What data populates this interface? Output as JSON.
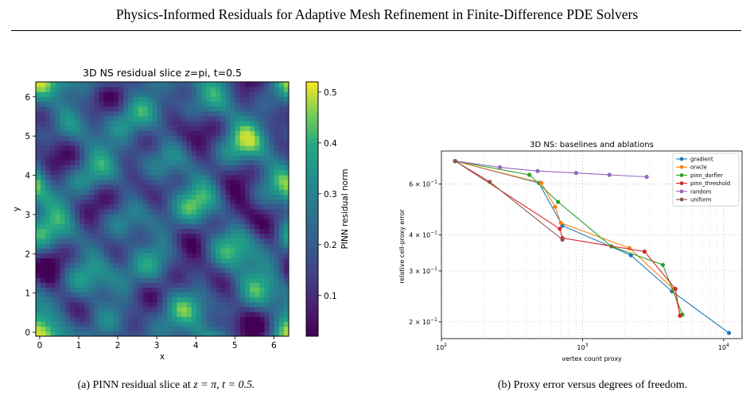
{
  "header": {
    "title": "Physics-Informed Residuals for Adaptive Mesh Refinement in Finite-Difference PDE Solvers"
  },
  "figures": {
    "a": {
      "caption_label": "(a)",
      "caption_text": "PINN residual slice at ",
      "caption_math": "z = π, t = 0.5.",
      "colorbar": {
        "label": "PINN residual norm",
        "min": 0.02,
        "max": 0.52,
        "ticks": [
          "0.1",
          "0.2",
          "0.3",
          "0.4",
          "0.5"
        ],
        "tick_values": [
          0.1,
          0.2,
          0.3,
          0.4,
          0.5
        ]
      }
    },
    "b": {
      "caption_label": "(b)",
      "caption_text": "Proxy error versus degrees of freedom."
    }
  },
  "chart_data": [
    {
      "type": "heatmap",
      "title": "3D NS residual slice z=pi, t=0.5",
      "xlabel": "x",
      "ylabel": "y",
      "xlim": [
        -0.1,
        6.38
      ],
      "ylim": [
        -0.1,
        6.38
      ],
      "x_ticks": [
        "0",
        "1",
        "2",
        "3",
        "4",
        "5",
        "6"
      ],
      "y_ticks": [
        "0",
        "1",
        "2",
        "3",
        "4",
        "5",
        "6"
      ],
      "x_tick_values": [
        0,
        1,
        2,
        3,
        4,
        5,
        6
      ],
      "y_tick_values": [
        0,
        1,
        2,
        3,
        4,
        5,
        6
      ],
      "colormap": "viridis",
      "value_range": [
        0.02,
        0.52
      ]
    },
    {
      "type": "line",
      "title": "3D NS: baselines and ablations",
      "xlabel": "vertex count proxy",
      "ylabel": "relative cell-proxy error",
      "x_scale": "log",
      "y_scale": "log",
      "xlim": [
        100,
        13500
      ],
      "ylim": [
        0.175,
        0.78
      ],
      "x_ticks": [
        {
          "base": "10",
          "exp": "2",
          "value": 100
        },
        {
          "base": "10",
          "exp": "3",
          "value": 1000
        },
        {
          "base": "10",
          "exp": "4",
          "value": 10000
        }
      ],
      "y_ticks": [
        {
          "mant": "2 × 10",
          "exp": "−1",
          "value": 0.2
        },
        {
          "mant": "3 × 10",
          "exp": "−1",
          "value": 0.3
        },
        {
          "mant": "4 × 10",
          "exp": "−1",
          "value": 0.4
        },
        {
          "mant": "6 × 10",
          "exp": "−1",
          "value": 0.6
        }
      ],
      "grid": true,
      "legend": "top-right",
      "series": [
        {
          "name": "gradient",
          "color": "#1f77b4",
          "x": [
            125,
            490,
            720,
            2200,
            4300,
            10900
          ],
          "y": [
            0.72,
            0.605,
            0.43,
            0.34,
            0.255,
            0.183
          ]
        },
        {
          "name": "oracle",
          "color": "#ff7f0e",
          "x": [
            125,
            510,
            640,
            700,
            2150,
            4400,
            4950
          ],
          "y": [
            0.72,
            0.605,
            0.5,
            0.44,
            0.36,
            0.26,
            0.21
          ]
        },
        {
          "name": "pinn_dorfler",
          "color": "#2ca02c",
          "x": [
            125,
            420,
            670,
            1600,
            3700,
            5100
          ],
          "y": [
            0.72,
            0.645,
            0.52,
            0.365,
            0.315,
            0.212
          ]
        },
        {
          "name": "pinn_threshold",
          "color": "#d62728",
          "x": [
            125,
            690,
            720,
            2750,
            4550,
            4900
          ],
          "y": [
            0.72,
            0.42,
            0.39,
            0.35,
            0.26,
            0.21
          ]
        },
        {
          "name": "random",
          "color": "#9467bd",
          "x": [
            125,
            260,
            480,
            900,
            1550,
            2850
          ],
          "y": [
            0.72,
            0.685,
            0.665,
            0.655,
            0.645,
            0.635
          ]
        },
        {
          "name": "uniform",
          "color": "#8c564b",
          "x": [
            125,
            220,
            720
          ],
          "y": [
            0.72,
            0.61,
            0.385
          ]
        }
      ]
    }
  ]
}
